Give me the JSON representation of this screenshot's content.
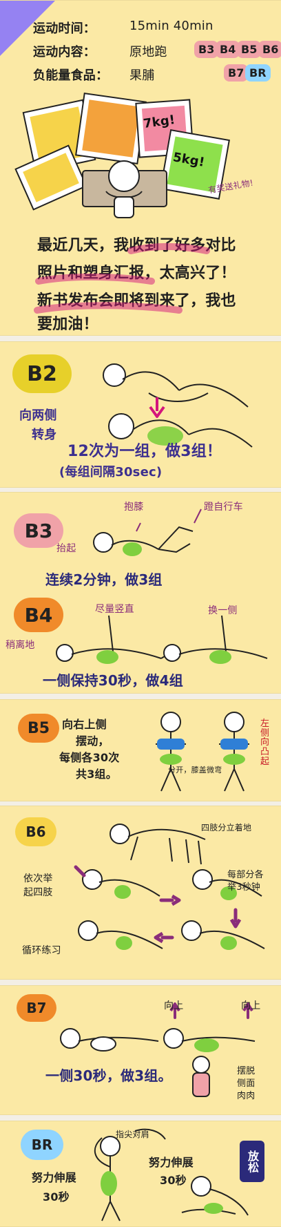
{
  "intro": {
    "rows": [
      {
        "label": "运动时间：",
        "value": "15min   40min"
      },
      {
        "label": "运动内容：",
        "value": "原地跑"
      },
      {
        "label": "负能量食品：",
        "value": "果脯"
      }
    ],
    "tags": [
      {
        "text": "B3"
      },
      {
        "text": "B4"
      },
      {
        "text": "B5"
      },
      {
        "text": "B6"
      },
      {
        "text": "B7"
      },
      {
        "text": "BR"
      }
    ],
    "annotation": "有奖送礼物!",
    "photo_labels": [
      {
        "text": "7kg!"
      },
      {
        "text": "5kg!"
      }
    ],
    "message_lines": [
      "最近几天，我收到了好多对比",
      "照片和塑身汇报，太高兴了！",
      "新书发布会即将到来了，我也",
      "要加油！"
    ]
  },
  "b2": {
    "badge": "B2",
    "side_text_1": "向两侧",
    "side_text_2": "转身",
    "main_text": "12次为一组，做3组！",
    "sub_text": "(每组间隔30sec)"
  },
  "b3": {
    "badge": "B3",
    "label_1": "抱膝",
    "label_2": "蹬自行车",
    "label_3": "抬起",
    "main_text": "连续2分钟，做3组"
  },
  "b4": {
    "badge": "B4",
    "label_1": "尽量竖直",
    "label_2": "换一侧",
    "label_3": "稍离地",
    "main_text": "一侧保持30秒，做4组"
  },
  "b5": {
    "badge": "B5",
    "lines": [
      "向右上侧",
      "摆动，",
      "每侧各30次",
      "共3组。"
    ],
    "label_left": "分开，膝盖微弯",
    "label_right": "左侧向凸起"
  },
  "b6": {
    "badge": "B6",
    "left_1": "依次举",
    "left_2": "起四肢",
    "right_1": "四肢分立着地",
    "right_2": "每部分各",
    "right_3": "举3秒钟",
    "bottom_left": "循环练习"
  },
  "b7": {
    "badge": "B7",
    "label_1": "向上",
    "label_2": "向上",
    "main_text": "一侧30秒，做3组。",
    "side_1": "摆脱",
    "side_2": "侧面",
    "side_3": "肉肉"
  },
  "br": {
    "badge": "BR",
    "label_1": "指尖对肩",
    "left_1": "努力伸展",
    "left_2": "30秒",
    "right_1": "努力伸展",
    "right_2": "30秒",
    "relax": "放松"
  },
  "colors": {
    "card_bg": "#fbe9a5",
    "purple": "#3c2f8f",
    "magenta": "#d4157c",
    "green": "#7fcf3f",
    "pink": "#f0a2a8",
    "orange": "#f08a2a",
    "yellow": "#e7d02a",
    "lightblue": "#8fd4ff",
    "navy": "#2b2a7a"
  }
}
